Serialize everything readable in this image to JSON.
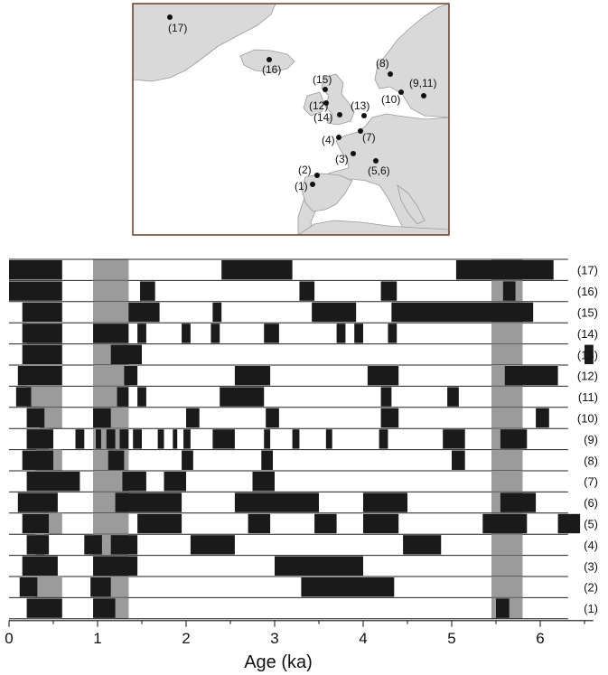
{
  "chart_data": {
    "type": "bar",
    "xlabel": "Age (ka)",
    "xlim": [
      0,
      6.6
    ],
    "xticks": [
      "0",
      "1",
      "2",
      "3",
      "4",
      "5",
      "6"
    ],
    "colors": {
      "event": "#1a1a1a",
      "shade": "#9b9b9b",
      "rule": "#222222"
    },
    "shaded_intervals": [
      [
        0.95,
        1.35
      ],
      [
        5.45,
        5.8
      ]
    ],
    "rows": [
      {
        "label": "(17)",
        "shade": [
          [
            0.95,
            1.35
          ]
        ],
        "events": [
          [
            0.0,
            0.6
          ],
          [
            2.4,
            3.2
          ],
          [
            5.05,
            6.15
          ]
        ]
      },
      {
        "label": "(16)",
        "shade": [
          [
            0.95,
            1.35
          ],
          [
            5.45,
            5.8
          ]
        ],
        "events": [
          [
            0.0,
            0.6
          ],
          [
            1.48,
            1.65
          ],
          [
            3.28,
            3.45
          ],
          [
            4.2,
            4.38
          ],
          [
            5.58,
            5.72
          ]
        ]
      },
      {
        "label": "(15)",
        "shade": [
          [
            0.95,
            1.35
          ],
          [
            5.45,
            5.8
          ]
        ],
        "events": [
          [
            0.15,
            0.6
          ],
          [
            1.35,
            1.7
          ],
          [
            2.3,
            2.4
          ],
          [
            3.42,
            3.92
          ],
          [
            4.32,
            5.92
          ]
        ]
      },
      {
        "label": "(14)",
        "shade": [
          [
            0.2,
            0.6
          ],
          [
            0.95,
            1.35
          ],
          [
            5.45,
            5.8
          ]
        ],
        "events": [
          [
            0.15,
            0.6
          ],
          [
            0.95,
            1.35
          ],
          [
            1.45,
            1.55
          ],
          [
            1.95,
            2.05
          ],
          [
            2.28,
            2.38
          ],
          [
            2.88,
            3.05
          ],
          [
            3.7,
            3.8
          ],
          [
            3.9,
            4.0
          ],
          [
            4.28,
            4.38
          ]
        ]
      },
      {
        "label": "(13)",
        "shade": [
          [
            0.95,
            1.35
          ],
          [
            5.45,
            5.8
          ]
        ],
        "events": [
          [
            0.15,
            0.6
          ],
          [
            1.15,
            1.5
          ],
          [
            6.5,
            6.6
          ]
        ]
      },
      {
        "label": "(12)",
        "shade": [
          [
            0.95,
            1.35
          ],
          [
            5.45,
            5.8
          ]
        ],
        "events": [
          [
            0.1,
            0.6
          ],
          [
            1.3,
            1.45
          ],
          [
            2.55,
            2.95
          ],
          [
            4.05,
            4.4
          ],
          [
            5.6,
            6.2
          ]
        ]
      },
      {
        "label": "(11)",
        "shade": [
          [
            0.2,
            0.6
          ],
          [
            0.95,
            1.35
          ],
          [
            5.45,
            5.8
          ]
        ],
        "events": [
          [
            0.08,
            0.25
          ],
          [
            1.22,
            1.35
          ],
          [
            1.45,
            1.55
          ],
          [
            2.38,
            2.88
          ],
          [
            4.2,
            4.32
          ],
          [
            4.95,
            5.08
          ]
        ]
      },
      {
        "label": "(10)",
        "shade": [
          [
            0.35,
            0.6
          ],
          [
            0.95,
            1.35
          ],
          [
            5.45,
            5.8
          ]
        ],
        "events": [
          [
            0.2,
            0.4
          ],
          [
            0.95,
            1.15
          ],
          [
            2.0,
            2.15
          ],
          [
            2.9,
            3.05
          ],
          [
            4.2,
            4.4
          ],
          [
            5.95,
            6.1
          ]
        ]
      },
      {
        "label": "(9)",
        "shade": [
          [
            0.2,
            0.45
          ],
          [
            0.95,
            1.35
          ],
          [
            5.45,
            5.8
          ]
        ],
        "events": [
          [
            0.2,
            0.5
          ],
          [
            0.75,
            0.85
          ],
          [
            0.98,
            1.04
          ],
          [
            1.1,
            1.2
          ],
          [
            1.25,
            1.35
          ],
          [
            1.4,
            1.5
          ],
          [
            1.68,
            1.75
          ],
          [
            1.85,
            1.9
          ],
          [
            1.97,
            2.05
          ],
          [
            2.3,
            2.55
          ],
          [
            2.88,
            2.95
          ],
          [
            3.2,
            3.28
          ],
          [
            3.58,
            3.65
          ],
          [
            4.18,
            4.28
          ],
          [
            4.9,
            5.15
          ],
          [
            5.55,
            5.85
          ]
        ]
      },
      {
        "label": "(8)",
        "shade": [
          [
            0.3,
            0.6
          ],
          [
            0.95,
            1.35
          ],
          [
            5.45,
            5.8
          ]
        ],
        "events": [
          [
            0.15,
            0.5
          ],
          [
            1.12,
            1.3
          ],
          [
            1.95,
            2.08
          ],
          [
            2.85,
            2.98
          ],
          [
            5.0,
            5.15
          ]
        ]
      },
      {
        "label": "(7)",
        "shade": [
          [
            0.95,
            1.35
          ],
          [
            5.45,
            5.8
          ]
        ],
        "events": [
          [
            0.2,
            0.8
          ],
          [
            1.28,
            1.55
          ],
          [
            1.75,
            2.0
          ],
          [
            2.75,
            3.0
          ]
        ]
      },
      {
        "label": "(6)",
        "shade": [
          [
            0.95,
            1.35
          ],
          [
            5.45,
            5.8
          ]
        ],
        "events": [
          [
            0.1,
            0.55
          ],
          [
            1.2,
            1.95
          ],
          [
            2.55,
            3.5
          ],
          [
            4.0,
            4.5
          ],
          [
            5.55,
            5.95
          ]
        ]
      },
      {
        "label": "(5)",
        "shade": [
          [
            0.45,
            0.6
          ],
          [
            0.95,
            1.35
          ],
          [
            5.45,
            5.8
          ]
        ],
        "events": [
          [
            0.15,
            0.45
          ],
          [
            1.45,
            1.95
          ],
          [
            2.7,
            2.95
          ],
          [
            3.45,
            3.7
          ],
          [
            4.0,
            4.4
          ],
          [
            5.35,
            5.85
          ],
          [
            6.2,
            6.45
          ]
        ]
      },
      {
        "label": "(4)",
        "shade": [
          [
            0.3,
            0.4
          ],
          [
            0.95,
            1.35
          ],
          [
            5.45,
            5.8
          ]
        ],
        "events": [
          [
            0.2,
            0.45
          ],
          [
            0.85,
            1.05
          ],
          [
            1.15,
            1.45
          ],
          [
            2.05,
            2.55
          ],
          [
            4.45,
            4.88
          ]
        ]
      },
      {
        "label": "(3)",
        "shade": [
          [
            0.95,
            1.35
          ],
          [
            5.45,
            5.8
          ]
        ],
        "events": [
          [
            0.15,
            0.55
          ],
          [
            0.95,
            1.45
          ],
          [
            3.0,
            4.0
          ]
        ]
      },
      {
        "label": "(2)",
        "shade": [
          [
            0.3,
            0.6
          ],
          [
            0.95,
            1.35
          ],
          [
            5.45,
            5.8
          ]
        ],
        "events": [
          [
            0.12,
            0.32
          ],
          [
            0.92,
            1.15
          ],
          [
            3.3,
            4.35
          ]
        ]
      },
      {
        "label": "(1)",
        "shade": [
          [
            0.95,
            1.35
          ],
          [
            5.45,
            5.8
          ]
        ],
        "events": [
          [
            0.2,
            0.6
          ],
          [
            0.95,
            1.2
          ],
          [
            5.5,
            5.65
          ]
        ]
      }
    ]
  },
  "map": {
    "colors": {
      "land": "#d9d9d9",
      "sea": "#ffffff",
      "border": "#888888",
      "frame": "#6b3a2a",
      "dot": "#111111"
    },
    "sites": [
      {
        "label": "(17)"
      },
      {
        "label": "(16)"
      },
      {
        "label": "(15)"
      },
      {
        "label": "(8)"
      },
      {
        "label": "(12)"
      },
      {
        "label": "(14)"
      },
      {
        "label": "(13)"
      },
      {
        "label": "(10)"
      },
      {
        "label": "(9,11)"
      },
      {
        "label": "(7)"
      },
      {
        "label": "(4)"
      },
      {
        "label": "(3)"
      },
      {
        "label": "(5,6)"
      },
      {
        "label": "(2)"
      },
      {
        "label": "(1)"
      }
    ]
  }
}
